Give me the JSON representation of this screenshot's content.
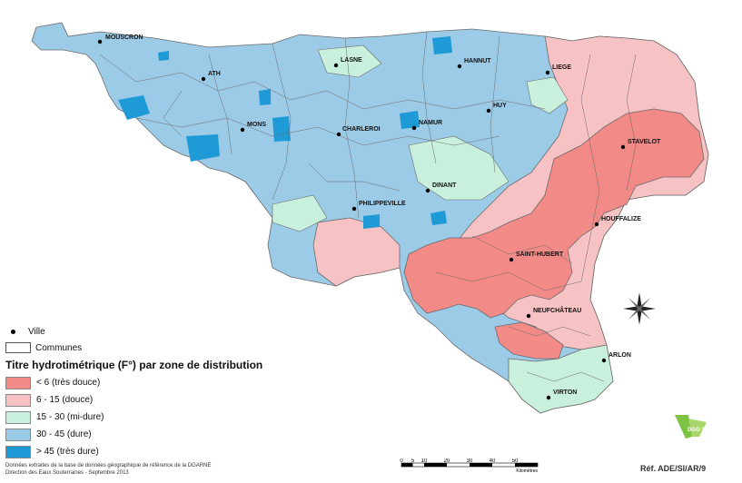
{
  "legend": {
    "ville_label": "Ville",
    "communes_label": "Communes",
    "title": "Titre hydrotimétrique (F°) par zone de distribution",
    "classes": [
      {
        "label": "< 6 (très douce)",
        "color": "#f28b88"
      },
      {
        "label": "6 - 15 (douce)",
        "color": "#f7c2c3"
      },
      {
        "label": "15 - 30 (mi-dure)",
        "color": "#c8f0dc"
      },
      {
        "label": "30 - 45 (dure)",
        "color": "#9ccbe8"
      },
      {
        "label": "> 45 (très dure)",
        "color": "#1e9ad6"
      }
    ]
  },
  "cities": [
    {
      "name": "MOUSCRON",
      "icon": "city-dot"
    },
    {
      "name": "ATH",
      "icon": "city-dot"
    },
    {
      "name": "MONS",
      "icon": "city-dot"
    },
    {
      "name": "LASNE",
      "icon": "city-dot"
    },
    {
      "name": "CHARLEROI",
      "icon": "city-dot"
    },
    {
      "name": "NAMUR",
      "icon": "city-dot"
    },
    {
      "name": "HANNUT",
      "icon": "city-dot"
    },
    {
      "name": "LIEGE",
      "icon": "city-dot"
    },
    {
      "name": "HUY",
      "icon": "city-dot"
    },
    {
      "name": "STAVELOT",
      "icon": "city-dot"
    },
    {
      "name": "DINANT",
      "icon": "city-dot"
    },
    {
      "name": "PHILIPPEVILLE",
      "icon": "city-dot"
    },
    {
      "name": "HOUFFALIZE",
      "icon": "city-dot"
    },
    {
      "name": "SAINT-HUBERT",
      "icon": "city-dot"
    },
    {
      "name": "NEUFCHÂTEAU",
      "icon": "city-dot"
    },
    {
      "name": "ARLON",
      "icon": "city-dot"
    },
    {
      "name": "VIRTON",
      "icon": "city-dot"
    }
  ],
  "footer": {
    "line1": "Données extraites de la base de données géographique de référence de la DGARNE",
    "line2": "Direction des Eaux Souterraines - Septembre 2013"
  },
  "scale": {
    "ticks": [
      "0",
      "5",
      "10",
      "20",
      "30",
      "40",
      "50"
    ],
    "unit": "Kilomètres"
  },
  "reference": "Réf. ADE/SI/AR/9",
  "logo_text": "DGO 3",
  "icons": [
    "north-arrow-icon",
    "dgo3-logo-icon"
  ]
}
